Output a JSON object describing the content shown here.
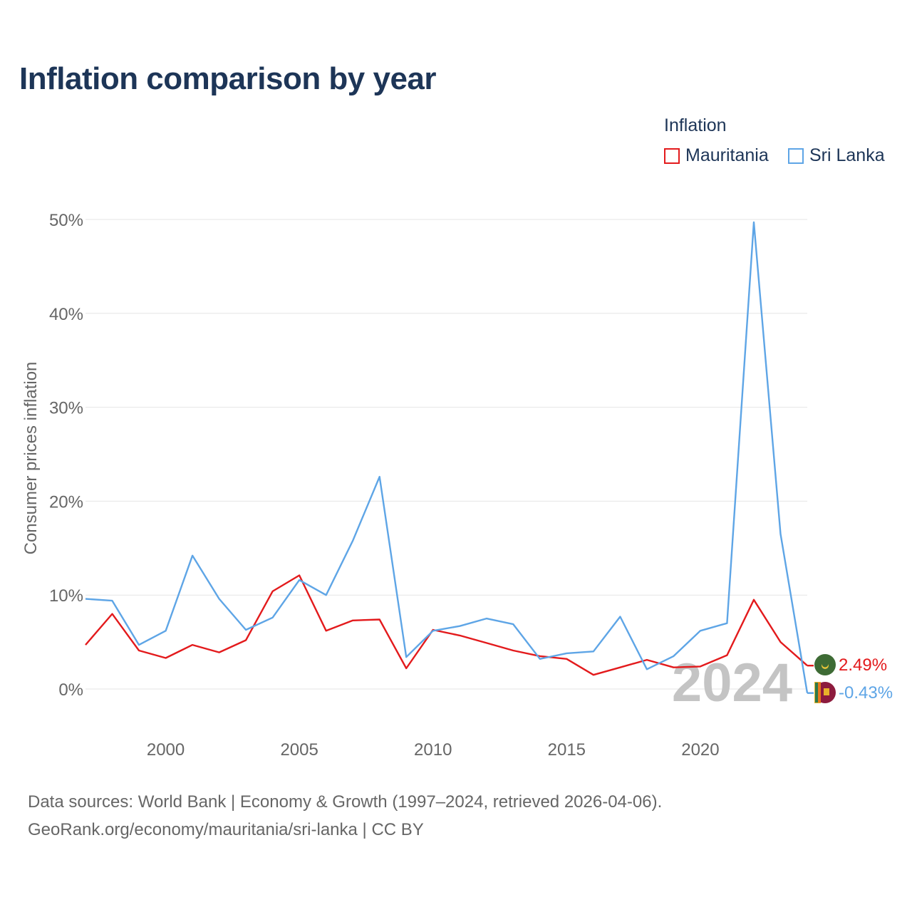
{
  "title": "Inflation comparison by year",
  "legend": {
    "title": "Inflation",
    "items": [
      {
        "label": "Mauritania",
        "color": "#e31a1c"
      },
      {
        "label": "Sri Lanka",
        "color": "#5ea5e6"
      }
    ]
  },
  "chart_data": {
    "type": "line",
    "ylabel": "Consumer prices inflation",
    "ylim": [
      -3,
      52
    ],
    "xlim": [
      1997,
      2024
    ],
    "yticks": [
      0,
      10,
      20,
      30,
      40,
      50
    ],
    "ytick_labels": [
      "0%",
      "10%",
      "20%",
      "30%",
      "40%",
      "50%"
    ],
    "xticks": [
      2000,
      2005,
      2010,
      2015,
      2020
    ],
    "xtick_labels": [
      "2000",
      "2005",
      "2010",
      "2015",
      "2020"
    ],
    "x": [
      1997,
      1998,
      1999,
      2000,
      2001,
      2002,
      2003,
      2004,
      2005,
      2006,
      2007,
      2008,
      2009,
      2010,
      2011,
      2012,
      2013,
      2014,
      2015,
      2016,
      2017,
      2018,
      2019,
      2020,
      2021,
      2022,
      2023,
      2024
    ],
    "series": [
      {
        "name": "Mauritania",
        "color": "#e31a1c",
        "values": [
          4.7,
          8.0,
          4.1,
          3.3,
          4.7,
          3.9,
          5.2,
          10.4,
          12.1,
          6.2,
          7.3,
          7.4,
          2.2,
          6.3,
          5.7,
          4.9,
          4.1,
          3.5,
          3.2,
          1.5,
          2.3,
          3.1,
          2.3,
          2.4,
          3.6,
          9.5,
          5.0,
          2.49
        ],
        "end_label": "2.49%"
      },
      {
        "name": "Sri Lanka",
        "color": "#5ea5e6",
        "values": [
          9.6,
          9.4,
          4.7,
          6.2,
          14.2,
          9.6,
          6.3,
          7.6,
          11.6,
          10.0,
          15.8,
          22.6,
          3.4,
          6.2,
          6.7,
          7.5,
          6.9,
          3.2,
          3.8,
          4.0,
          7.7,
          2.1,
          3.5,
          6.2,
          7.0,
          49.7,
          16.5,
          -0.43
        ],
        "end_label": "-0.43%"
      }
    ],
    "year_watermark": "2024"
  },
  "footer": {
    "line1": "Data sources: World Bank | Economy & Growth (1997–2024, retrieved 2026-04-06).",
    "line2": "GeoRank.org/economy/mauritania/sri-lanka | CC BY"
  }
}
